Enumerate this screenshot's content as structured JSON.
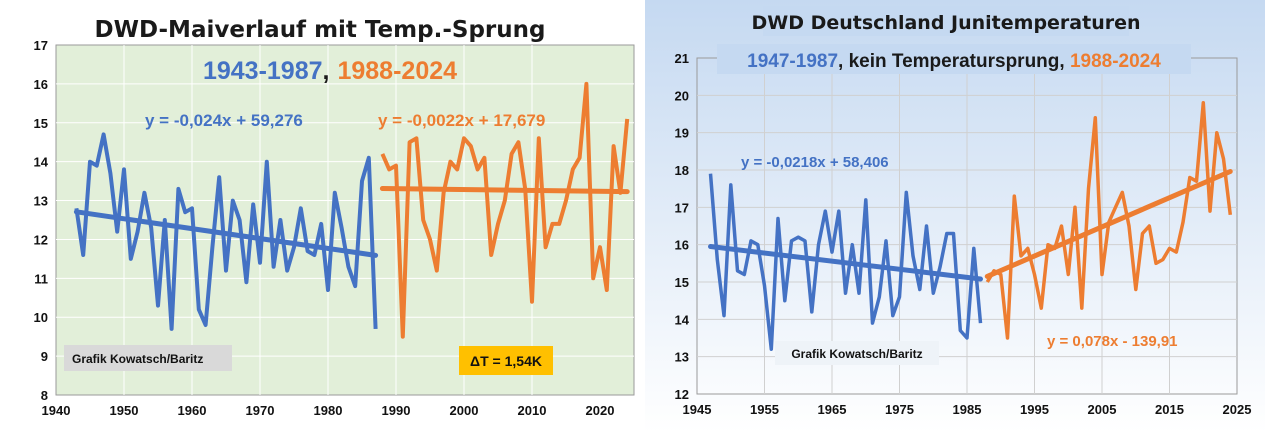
{
  "colors": {
    "blue": "#4472C4",
    "orange": "#ED7D31",
    "panel1": "#E2EFD9",
    "panel2_top": "#C5D9F1",
    "panel2_bottom": "#FFFFFF"
  },
  "chart_data": [
    {
      "type": "line",
      "title": "DWD-Maiverlauf mit Temp.-Sprung",
      "subtitle": {
        "period1": "1943-1987",
        "sep": ",",
        "period2": "1988-2024"
      },
      "xlim": [
        1940,
        2025
      ],
      "ylim": [
        8,
        17
      ],
      "xticks": [
        1940,
        1950,
        1960,
        1970,
        1980,
        1990,
        2000,
        2010,
        2020
      ],
      "yticks": [
        8,
        9,
        10,
        11,
        12,
        13,
        14,
        15,
        16,
        17
      ],
      "grid": true,
      "series": [
        {
          "color": "blue",
          "x_start": 1943,
          "values": [
            12.8,
            11.6,
            14.0,
            13.9,
            14.7,
            13.7,
            12.2,
            13.8,
            11.5,
            12.2,
            13.2,
            12.3,
            10.3,
            12.5,
            9.7,
            13.3,
            12.7,
            12.8,
            10.2,
            9.8,
            11.8,
            13.6,
            11.2,
            13.0,
            12.5,
            10.9,
            12.9,
            11.4,
            14.0,
            11.3,
            12.5,
            11.2,
            11.8,
            12.8,
            11.7,
            11.6,
            12.4,
            10.7,
            13.2,
            12.3,
            11.3,
            10.8,
            13.5,
            14.1,
            9.7
          ]
        },
        {
          "color": "orange",
          "x_start": 1988,
          "values": [
            14.2,
            13.8,
            13.9,
            9.5,
            14.5,
            14.6,
            12.5,
            12.0,
            11.2,
            13.2,
            14.0,
            13.8,
            14.6,
            14.4,
            13.8,
            14.1,
            11.6,
            12.4,
            13.0,
            14.2,
            14.5,
            13.3,
            10.4,
            14.6,
            11.8,
            12.4,
            12.4,
            13.0,
            13.8,
            14.1,
            16.0,
            11.0,
            11.8,
            10.7,
            14.4,
            13.2,
            15.1
          ]
        }
      ],
      "trendlines": [
        {
          "color": "blue",
          "x": [
            1943,
            1987
          ],
          "y": [
            12.71,
            11.59
          ],
          "equation": "y = -0,024x + 59,276"
        },
        {
          "color": "orange",
          "x": [
            1988,
            2024
          ],
          "y": [
            13.31,
            13.23
          ],
          "equation": "y = -0,0022x + 17,679"
        }
      ],
      "annotations": {
        "credit": "Grafik Kowatsch/Baritz",
        "delta": "ΔT = 1,54K"
      }
    },
    {
      "type": "line",
      "title": "DWD Deutschland Junitemperaturen",
      "subtitle": {
        "period1": "1947-1987",
        "middle": ", kein Temperatursprung, ",
        "period2": "1988-2024"
      },
      "xlim": [
        1945,
        2025
      ],
      "ylim": [
        12,
        21
      ],
      "xticks": [
        1945,
        1955,
        1965,
        1975,
        1985,
        1995,
        2005,
        2015,
        2025
      ],
      "yticks": [
        12,
        13,
        14,
        15,
        16,
        17,
        18,
        19,
        20,
        21
      ],
      "grid": true,
      "series": [
        {
          "color": "blue",
          "x_start": 1947,
          "values": [
            17.9,
            15.6,
            14.1,
            17.6,
            15.3,
            15.2,
            16.1,
            16.0,
            14.9,
            13.2,
            16.7,
            14.5,
            16.1,
            16.2,
            16.1,
            14.2,
            16.0,
            16.9,
            15.8,
            16.9,
            14.7,
            16.0,
            14.7,
            17.2,
            13.9,
            14.6,
            16.1,
            14.1,
            14.6,
            17.4,
            15.7,
            14.8,
            16.5,
            14.7,
            15.4,
            16.3,
            16.3,
            13.7,
            13.5,
            15.9,
            13.9
          ]
        },
        {
          "color": "orange",
          "x_start": 1988,
          "values": [
            15.0,
            15.3,
            15.2,
            13.5,
            17.3,
            15.7,
            15.9,
            15.2,
            14.3,
            16.0,
            15.9,
            16.5,
            15.2,
            17.0,
            14.3,
            17.5,
            19.4,
            15.2,
            16.6,
            17.0,
            17.4,
            16.5,
            14.8,
            16.3,
            16.5,
            15.5,
            15.6,
            15.9,
            15.8,
            16.6,
            17.8,
            17.7,
            19.8,
            16.9,
            19.0,
            18.3,
            16.8
          ]
        }
      ],
      "trendlines": [
        {
          "color": "blue",
          "x": [
            1947,
            1987
          ],
          "y": [
            15.95,
            15.08
          ],
          "equation": "y = -0,0218x + 58,406"
        },
        {
          "color": "orange",
          "x": [
            1988,
            2024
          ],
          "y": [
            15.15,
            17.96
          ],
          "equation": "y = 0,078x - 139,91"
        }
      ],
      "annotations": {
        "credit": "Grafik Kowatsch/Baritz"
      }
    }
  ]
}
